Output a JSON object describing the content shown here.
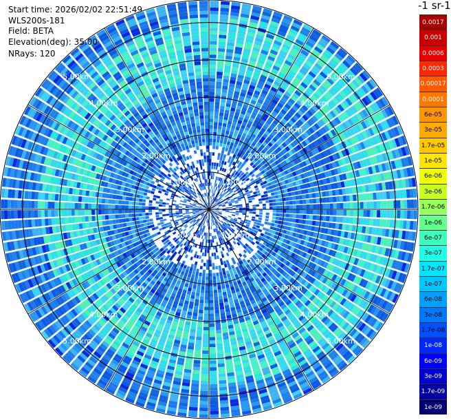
{
  "header": {
    "start_time": "Start time: 2026/02/02 22:51:49",
    "instrument": "WLS200s-181",
    "field": "Field: BETA",
    "elevation": "Elevation(deg): 35.00",
    "nrays": "NRays: 120"
  },
  "colorbar": {
    "title": "-1 sr-1",
    "ticks": [
      "0.0017",
      "0.001",
      "0.0006",
      "0.0003",
      "0.00017",
      "0.0001",
      "6e-05",
      "3e-05",
      "1.7e-05",
      "1e-05",
      "6e-06",
      "3e-06",
      "1.7e-06",
      "1e-06",
      "6e-07",
      "3e-07",
      "1.7e-07",
      "1e-07",
      "6e-08",
      "3e-08",
      "1.7e-08",
      "1e-08",
      "6e-09",
      "3e-09",
      "1.7e-09",
      "1e-09"
    ],
    "colors": [
      "#a80000",
      "#cc0000",
      "#e80000",
      "#ff2800",
      "#ff5a00",
      "#ff7800",
      "#ff9600",
      "#ffaa00",
      "#ffc800",
      "#ffe600",
      "#f0ff00",
      "#c8ff1e",
      "#96ff5a",
      "#64ff8c",
      "#3cffbe",
      "#1effe6",
      "#00e6ff",
      "#00c8ff",
      "#00a0ff",
      "#0078ff",
      "#0050ff",
      "#0028ff",
      "#0000ff",
      "#0000d2",
      "#0000a0",
      "#000070"
    ]
  },
  "chart_data": {
    "type": "heatmap",
    "projection": "polar (PPI scan)",
    "field": "BETA",
    "elevation_deg": 35.0,
    "n_rays": 120,
    "max_range_km": 5.6,
    "range_ring_labels": [
      "1.00km",
      "2.00km",
      "3.00km",
      "4.00km",
      "5.00km"
    ],
    "range_rings_km": [
      1,
      2,
      3,
      4,
      5
    ],
    "background_band_color": "#1e78e6",
    "high_signal_annulus_km": [
      3.3,
      4.9
    ],
    "high_signal_color": "#28e6dc",
    "colormap_ticks": [
      "0.0017",
      "0.001",
      "0.0006",
      "0.0003",
      "0.00017",
      "0.0001",
      "6e-05",
      "3e-05",
      "1.7e-05",
      "1e-05",
      "6e-06",
      "3e-06",
      "1.7e-06",
      "1e-06",
      "6e-07",
      "3e-07",
      "1.7e-07",
      "1e-07",
      "6e-08",
      "3e-08",
      "1.7e-08",
      "1e-08",
      "6e-09",
      "3e-09",
      "1.7e-09",
      "1e-09"
    ]
  }
}
